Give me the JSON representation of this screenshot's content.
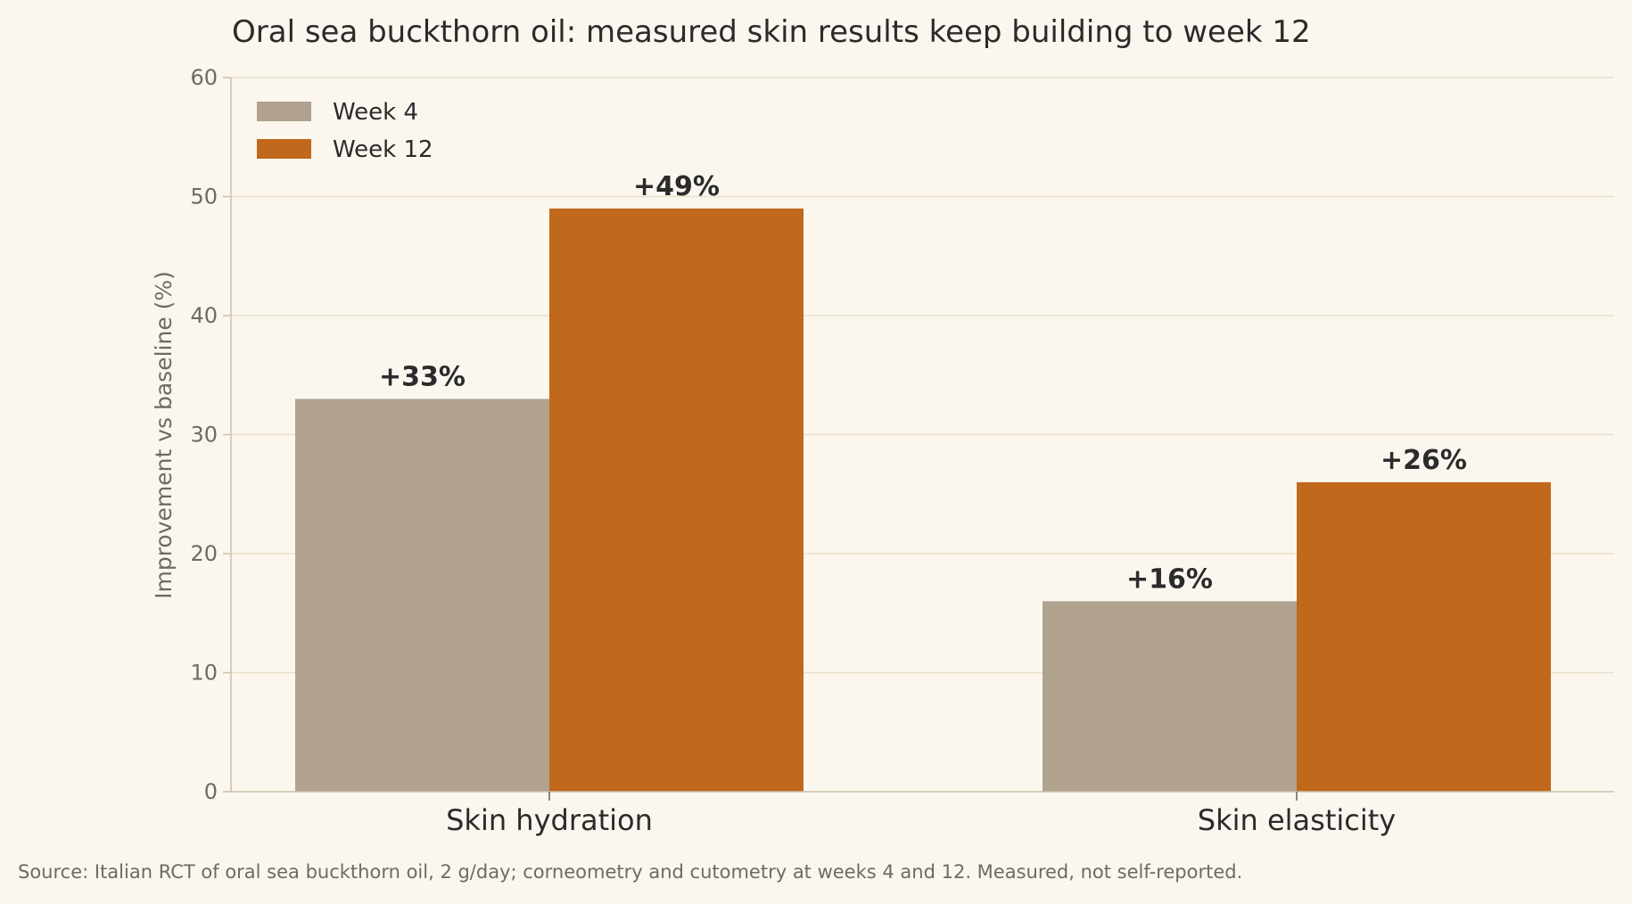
{
  "chart_data": {
    "type": "bar",
    "title": "Oral sea buckthorn oil: measured skin results keep building to week 12",
    "ylabel": "Improvement vs baseline (%)",
    "xlabel": "",
    "ylim": [
      0,
      60
    ],
    "yticks": [
      0,
      10,
      20,
      30,
      40,
      50,
      60
    ],
    "grid": true,
    "legend_position": "top-left",
    "categories": [
      "Skin hydration",
      "Skin elasticity"
    ],
    "series": [
      {
        "name": "Week 4",
        "color": "#b0a28f",
        "values": [
          33,
          16
        ],
        "labels": [
          "+33%",
          "+16%"
        ]
      },
      {
        "name": "Week 12",
        "color": "#c0681c",
        "values": [
          49,
          26
        ],
        "labels": [
          "+49%",
          "+26%"
        ]
      }
    ],
    "source": "Source: Italian RCT of oral sea buckthorn oil, 2 g/day; corneometry and cutometry at weeks 4 and 12. Measured, not self-reported."
  }
}
